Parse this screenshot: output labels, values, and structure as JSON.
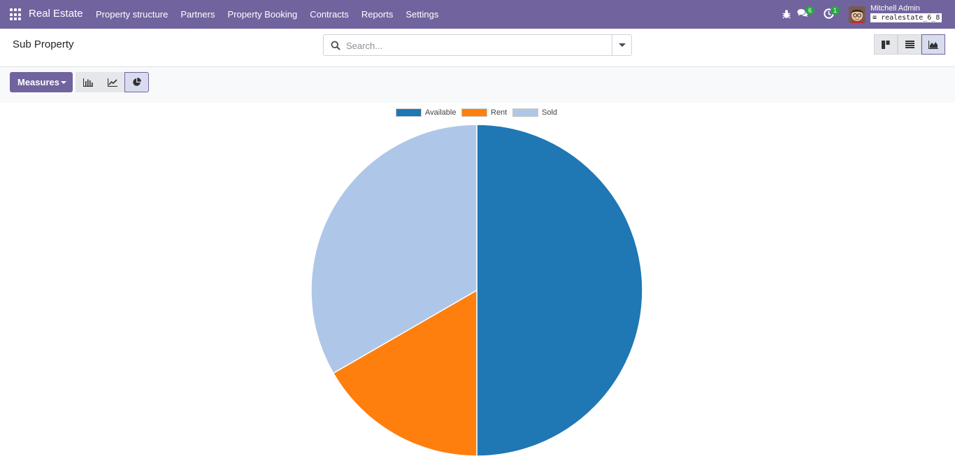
{
  "navbar": {
    "brand": "Real Estate",
    "menu": [
      "Property structure",
      "Partners",
      "Property Booking",
      "Contracts",
      "Reports",
      "Settings"
    ],
    "messages_count": "6",
    "activities_count": "1",
    "user_name": "Mitchell Admin",
    "database": "realestate_6_8"
  },
  "control": {
    "title": "Sub Property",
    "search_placeholder": "Search..."
  },
  "toolbar": {
    "measures_label": "Measures"
  },
  "colors": {
    "brand": "#71639e",
    "available": "#1f77b4",
    "rent": "#ff7f0e",
    "sold": "#aec7e8"
  },
  "chart_data": {
    "type": "pie",
    "labels": [
      "Available",
      "Rent",
      "Sold"
    ],
    "values": [
      3,
      1,
      2
    ],
    "colors": [
      "#1f77b4",
      "#ff7f0e",
      "#aec7e8"
    ],
    "legend": "top-center"
  }
}
